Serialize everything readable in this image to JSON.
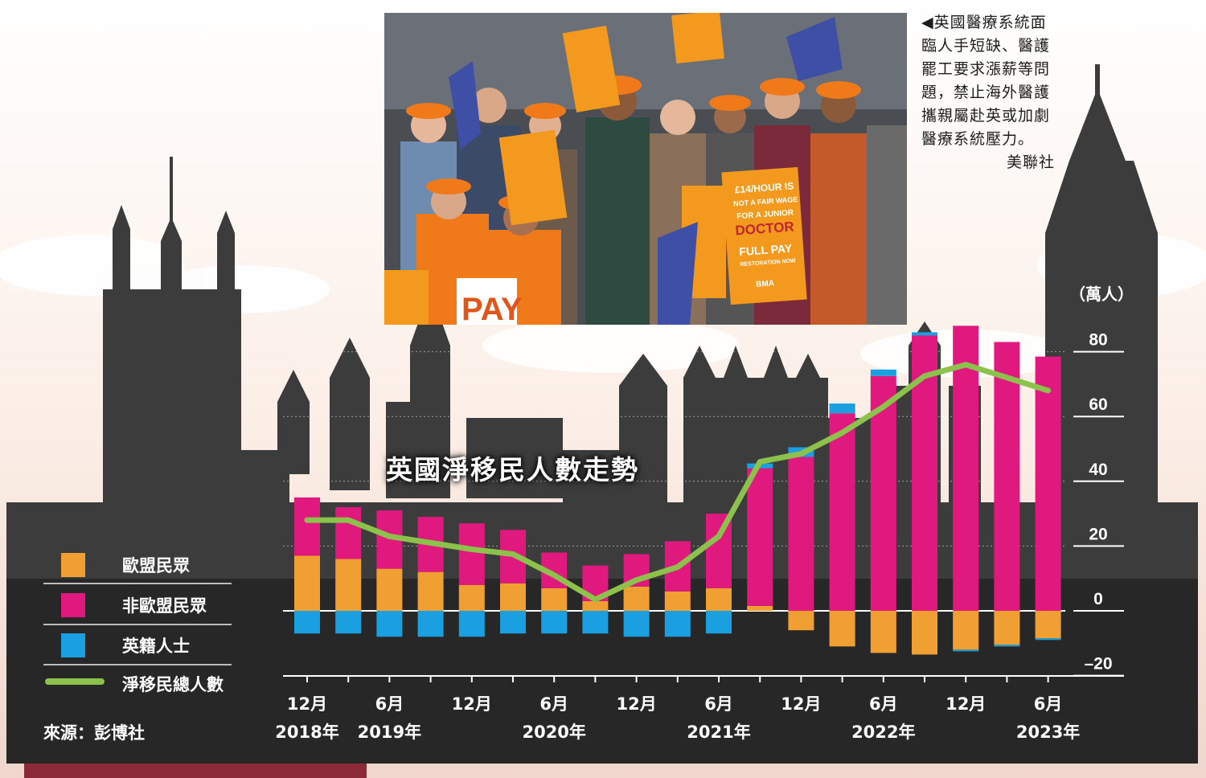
{
  "caption": {
    "text": "◀英國醫療系統面臨人手短缺、醫護罷工要求漲薪等問題，禁止海外醫護攜親屬赴英或加劇醫療系統壓力。",
    "credit": "美聯社"
  },
  "photo_signs": {
    "sign1_l1": "£14/HOUR IS",
    "sign1_l2": "NOT A FAIR WAGE",
    "sign1_l3": "FOR A JUNIOR",
    "sign1_l4": "DOCTOR",
    "sign1_l5": "FULL PAY",
    "sign1_l6": "RESTORATION NOW",
    "sign_pay": "PAY",
    "sign_bma": "BMA"
  },
  "colors": {
    "eu": "#f0a033",
    "non_eu": "#e0197f",
    "british": "#1a9fe0",
    "net_total": "#8cc14b"
  },
  "legend": [
    {
      "label": "歐盟民眾",
      "color": "#f0a033",
      "kind": "box"
    },
    {
      "label": "非歐盟民眾",
      "color": "#e0197f",
      "kind": "box"
    },
    {
      "label": "英籍人士",
      "color": "#1a9fe0",
      "kind": "box"
    },
    {
      "label": "淨移民總人數",
      "color": "#8cc14b",
      "kind": "line"
    }
  ],
  "source": "來源：彭博社",
  "chart_data": {
    "type": "bar",
    "stacked": true,
    "title": "英國淨移民人數走勢",
    "unit": "（萬人）",
    "ylim": [
      -20,
      80
    ],
    "yticks": [
      80,
      60,
      40,
      20,
      0,
      -20
    ],
    "ytick_labels": [
      "80",
      "60",
      "40",
      "20",
      "0",
      "–20"
    ],
    "x_tick_labels": [
      {
        "index": 0,
        "month": "12月",
        "year": "2018年"
      },
      {
        "index": 2,
        "month": "6月",
        "year": "2019年"
      },
      {
        "index": 4,
        "month": "12月",
        "year": ""
      },
      {
        "index": 6,
        "month": "6月",
        "year": "2020年"
      },
      {
        "index": 8,
        "month": "12月",
        "year": ""
      },
      {
        "index": 10,
        "month": "6月",
        "year": "2021年"
      },
      {
        "index": 12,
        "month": "12月",
        "year": ""
      },
      {
        "index": 14,
        "month": "6月",
        "year": "2022年"
      },
      {
        "index": 16,
        "month": "12月",
        "year": ""
      },
      {
        "index": 18,
        "month": "6月",
        "year": "2023年"
      }
    ],
    "series": [
      {
        "name": "歐盟民眾",
        "values": [
          17,
          16,
          13,
          12,
          8,
          8.5,
          7,
          3,
          7.5,
          6,
          7,
          1.5,
          -6,
          -11,
          -13,
          -13.5,
          -12,
          -10.5,
          -8.5
        ]
      },
      {
        "name": "非歐盟民眾",
        "values": [
          18,
          16,
          18,
          17,
          19,
          16.5,
          11,
          11,
          10,
          15.5,
          23,
          42.5,
          47.5,
          61,
          72.5,
          85,
          88,
          83,
          78.5
        ]
      },
      {
        "name": "英籍人士",
        "values": [
          -7,
          -7,
          -8,
          -8,
          -8,
          -7,
          -7,
          -7,
          -8,
          -8,
          -7,
          1.5,
          3,
          3,
          2,
          1,
          -0.5,
          -0.5,
          -0.5
        ]
      },
      {
        "name": "淨移民總人數",
        "kind": "line",
        "values": [
          28,
          28,
          23,
          21,
          19,
          17.5,
          11,
          3.5,
          9.5,
          13.5,
          23,
          46,
          48.5,
          55,
          63,
          72.5,
          76,
          72,
          68
        ]
      }
    ]
  }
}
